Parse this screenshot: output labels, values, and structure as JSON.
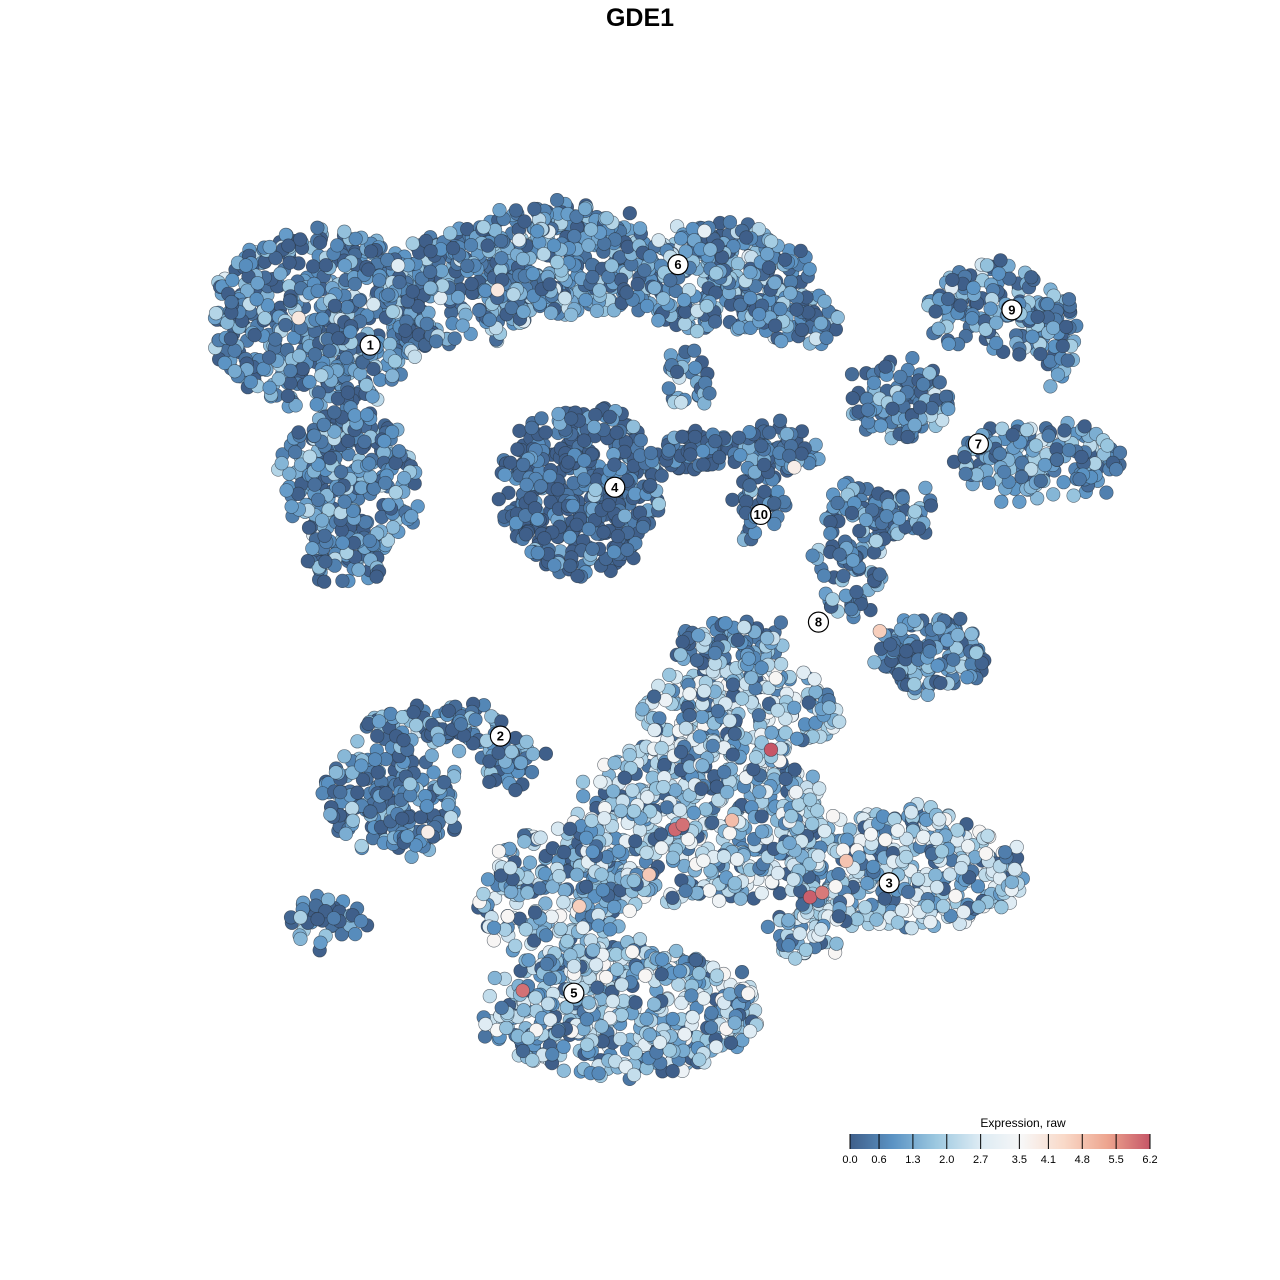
{
  "chart_data": {
    "type": "scatter",
    "title": "GDE1",
    "xlabel": "",
    "ylabel": "",
    "grid": false,
    "axes_visible": false,
    "xlim": [
      0,
      100
    ],
    "ylim": [
      0,
      100
    ],
    "color_scale": {
      "title": "Expression, raw",
      "min": 0.0,
      "max": 6.2,
      "ticks": [
        "0.0",
        "0.6",
        "1.3",
        "2.0",
        "2.7",
        "3.5",
        "4.1",
        "4.8",
        "5.5",
        "6.2"
      ],
      "tick_values": [
        0.0,
        0.6,
        1.3,
        2.0,
        2.7,
        3.5,
        4.1,
        4.8,
        5.5,
        6.2
      ],
      "colors": [
        "#3f5f8a",
        "#5b93c4",
        "#9cc8e0",
        "#dbeaf3",
        "#f7f7f7",
        "#f9d9c8",
        "#eda58f",
        "#c65667"
      ],
      "placement": "bottom-right"
    },
    "clusters": [
      {
        "label": "1",
        "center": [
          18.3,
          82.3
        ],
        "mean_expression": 1.0,
        "blobs": [
          [
            12.9,
            85.1,
            11.8,
            10,
            520
          ],
          [
            16.1,
            67.4,
            7.5,
            7.7,
            260
          ],
          [
            15.9,
            59.1,
            4.3,
            3.3,
            70
          ],
          [
            28,
            88.4,
            8.6,
            6.6,
            220
          ]
        ]
      },
      {
        "label": "2",
        "center": [
          32.3,
          39.1
        ],
        "mean_expression": 0.8,
        "blobs": [
          [
            20.4,
            32,
            7.5,
            6.1,
            200
          ],
          [
            25.8,
            40.3,
            7.5,
            2.8,
            90
          ],
          [
            14,
            18.8,
            4.3,
            2.8,
            40
          ],
          [
            33.3,
            36.5,
            3.2,
            3.3,
            40
          ]
        ]
      },
      {
        "label": "3",
        "center": [
          74.1,
          22.9
        ],
        "mean_expression": 2.2,
        "blobs": [
          [
            75.3,
            24.3,
            12.9,
            6.6,
            380
          ],
          [
            53.8,
            29.8,
            14,
            8.8,
            520
          ],
          [
            58.1,
            42,
            10.8,
            5.5,
            240
          ],
          [
            65.6,
            18.8,
            4.3,
            4.4,
            60
          ]
        ]
      },
      {
        "label": "4",
        "center": [
          44.6,
          66.6
        ],
        "mean_expression": 0.2,
        "blobs": [
          [
            40.9,
            66.3,
            8.6,
            9.4,
            420
          ],
          [
            53.8,
            70.7,
            4.3,
            2.2,
            50
          ]
        ]
      },
      {
        "label": "5",
        "center": [
          40.2,
          10.7
        ],
        "mean_expression": 1.9,
        "blobs": [
          [
            45.2,
            8.8,
            15,
            7.2,
            480
          ],
          [
            38.7,
            21,
            8.6,
            7.7,
            240
          ]
        ]
      },
      {
        "label": "6",
        "center": [
          51.4,
          91.2
        ],
        "mean_expression": 1.1,
        "blobs": [
          [
            38.7,
            91.7,
            11.8,
            6.1,
            380
          ],
          [
            55.9,
            89.5,
            9.7,
            6.1,
            300
          ],
          [
            64.5,
            85.1,
            4.3,
            3.3,
            60
          ],
          [
            52.7,
            78.5,
            2.7,
            3.3,
            30
          ]
        ]
      },
      {
        "label": "7",
        "center": [
          83.7,
          71.4
        ],
        "mean_expression": 1.0,
        "blobs": [
          [
            75.3,
            76.2,
            5.4,
            4.4,
            110
          ],
          [
            90.3,
            69.6,
            8.6,
            4.4,
            170
          ]
        ]
      },
      {
        "label": "8",
        "center": [
          66.5,
          51.7
        ],
        "mean_expression": 0.9,
        "blobs": [
          [
            69.9,
            59.7,
            3.8,
            7.7,
            100
          ],
          [
            78.5,
            48.1,
            5.9,
            3.9,
            140
          ],
          [
            75.3,
            64.1,
            4.3,
            2.8,
            50
          ],
          [
            57,
            49.7,
            5.4,
            2.8,
            70
          ]
        ]
      },
      {
        "label": "9",
        "center": [
          87.3,
          86.2
        ],
        "mean_expression": 1.0,
        "blobs": [
          [
            86,
            86.2,
            8,
            5,
            150
          ],
          [
            91.9,
            82.9,
            2.2,
            5.5,
            40
          ]
        ]
      },
      {
        "label": "10",
        "center": [
          60.3,
          63.6
        ],
        "mean_expression": 0.6,
        "blobs": [
          [
            61.8,
            70.7,
            4.3,
            2.8,
            70
          ],
          [
            60.2,
            64.1,
            2.7,
            3.9,
            40
          ]
        ]
      }
    ],
    "high_expression_points": [
      {
        "x": 61.4,
        "y": 37.6,
        "value": 6.2
      },
      {
        "x": 51.1,
        "y": 28.8,
        "value": 6.0
      },
      {
        "x": 51.9,
        "y": 29.3,
        "value": 5.9
      },
      {
        "x": 65.6,
        "y": 21.3,
        "value": 6.1
      },
      {
        "x": 66.9,
        "y": 21.8,
        "value": 5.8
      },
      {
        "x": 34.7,
        "y": 11.0,
        "value": 5.9
      },
      {
        "x": 73.1,
        "y": 50.7,
        "value": 4.6
      },
      {
        "x": 32.0,
        "y": 88.4,
        "value": 4.0
      },
      {
        "x": 10.6,
        "y": 85.3,
        "value": 4.0
      },
      {
        "x": 63.9,
        "y": 68.8,
        "value": 3.8
      },
      {
        "x": 24.5,
        "y": 28.5,
        "value": 3.8
      },
      {
        "x": 69.5,
        "y": 25.3,
        "value": 4.8
      },
      {
        "x": 40.8,
        "y": 20.3,
        "value": 4.6
      },
      {
        "x": 57.2,
        "y": 29.8,
        "value": 4.9
      },
      {
        "x": 48.3,
        "y": 23.8,
        "value": 4.7
      }
    ]
  }
}
